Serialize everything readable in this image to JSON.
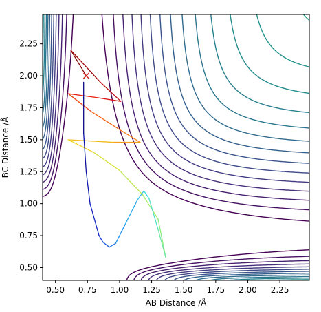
{
  "chart_data": {
    "type": "contour",
    "title": "",
    "xlabel": "AB Distance /Å",
    "ylabel": "BC Distance /Å",
    "xlim": [
      0.4,
      2.48
    ],
    "ylim": [
      0.4,
      2.48
    ],
    "xticks": [
      "0.50",
      "0.75",
      "1.00",
      "1.25",
      "1.50",
      "1.75",
      "2.00",
      "2.25"
    ],
    "yticks": [
      "0.50",
      "0.75",
      "1.00",
      "1.25",
      "1.50",
      "1.75",
      "2.00",
      "2.25"
    ],
    "grid": false,
    "legend": "none",
    "colormap": "viridis",
    "contour_levels": 24,
    "start_marker": {
      "symbol": "x",
      "color": "#d62728",
      "x": 0.74,
      "y": 2.0
    },
    "trajectory": {
      "colormap": "jet",
      "points": [
        [
          0.74,
          2.0
        ],
        [
          0.62,
          2.2
        ],
        [
          0.85,
          1.95
        ],
        [
          1.01,
          1.8
        ],
        [
          0.82,
          1.83
        ],
        [
          0.6,
          1.86
        ],
        [
          0.78,
          1.72
        ],
        [
          1.0,
          1.58
        ],
        [
          1.16,
          1.48
        ],
        [
          0.95,
          1.48
        ],
        [
          0.6,
          1.5
        ],
        [
          0.8,
          1.4
        ],
        [
          1.0,
          1.26
        ],
        [
          1.18,
          1.07
        ],
        [
          1.3,
          0.88
        ],
        [
          1.36,
          0.58
        ],
        [
          1.3,
          0.8
        ],
        [
          1.23,
          1.04
        ],
        [
          1.19,
          1.1
        ],
        [
          1.14,
          1.03
        ],
        [
          1.04,
          0.83
        ],
        [
          0.97,
          0.69
        ],
        [
          0.92,
          0.66
        ],
        [
          0.87,
          0.7
        ],
        [
          0.84,
          0.75
        ],
        [
          0.77,
          1.0
        ],
        [
          0.74,
          1.25
        ],
        [
          0.72,
          1.55
        ],
        [
          0.72,
          1.95
        ]
      ]
    }
  },
  "colors": {
    "spine": "#000000",
    "marker": "#d62728"
  }
}
